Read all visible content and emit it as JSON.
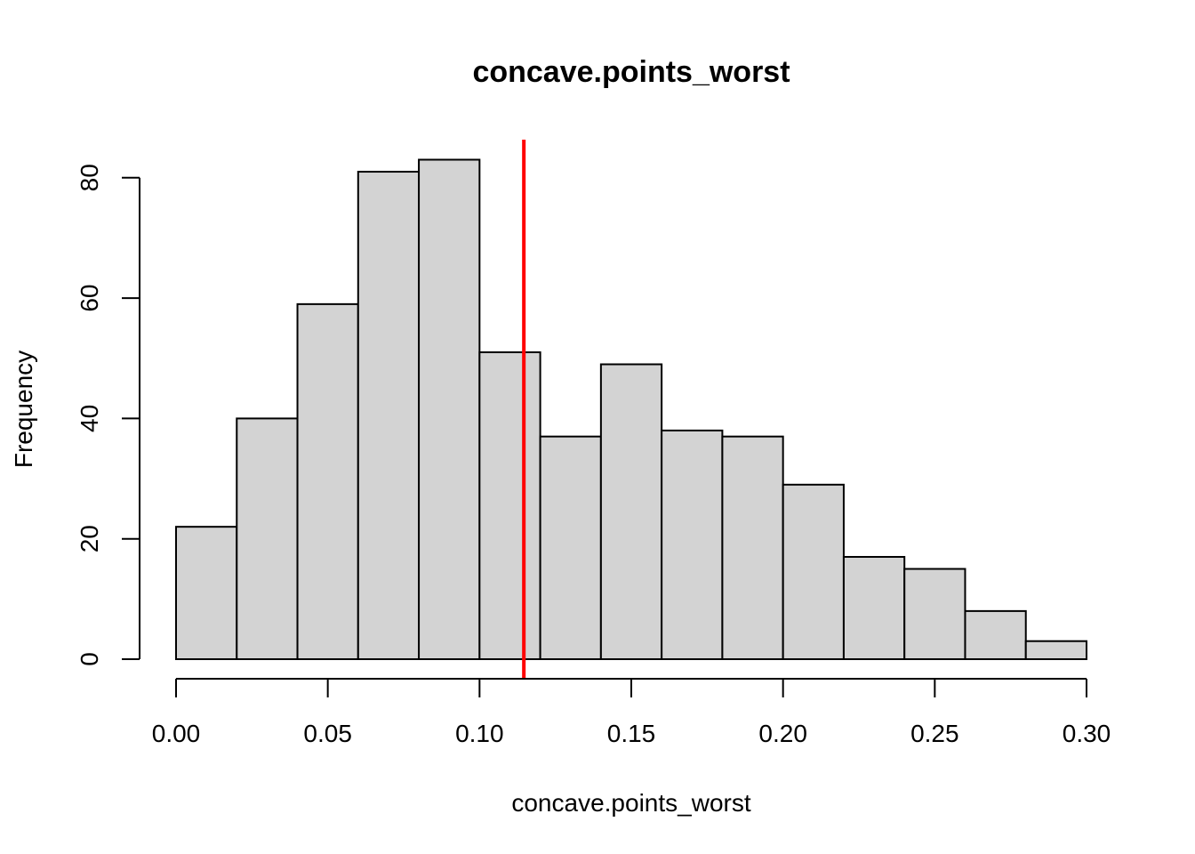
{
  "chart_data": {
    "type": "bar",
    "title": "concave.points_worst",
    "xlabel": "concave.points_worst",
    "ylabel": "Frequency",
    "bin_edges": [
      0.0,
      0.02,
      0.04,
      0.06,
      0.08,
      0.1,
      0.12,
      0.14,
      0.16,
      0.18,
      0.2,
      0.22,
      0.24,
      0.26,
      0.28,
      0.3
    ],
    "values": [
      22,
      40,
      59,
      81,
      83,
      51,
      37,
      49,
      38,
      37,
      29,
      17,
      15,
      8,
      3
    ],
    "xlim": [
      0,
      0.3
    ],
    "ylim": [
      0,
      86
    ],
    "x_ticks": [
      "0.00",
      "0.05",
      "0.10",
      "0.15",
      "0.20",
      "0.25",
      "0.30"
    ],
    "y_ticks": [
      "0",
      "20",
      "40",
      "60",
      "80"
    ],
    "bar_color": "#d3d3d3",
    "reference_line": {
      "x": 0.1146,
      "color": "#ff0000"
    },
    "grid": false
  }
}
